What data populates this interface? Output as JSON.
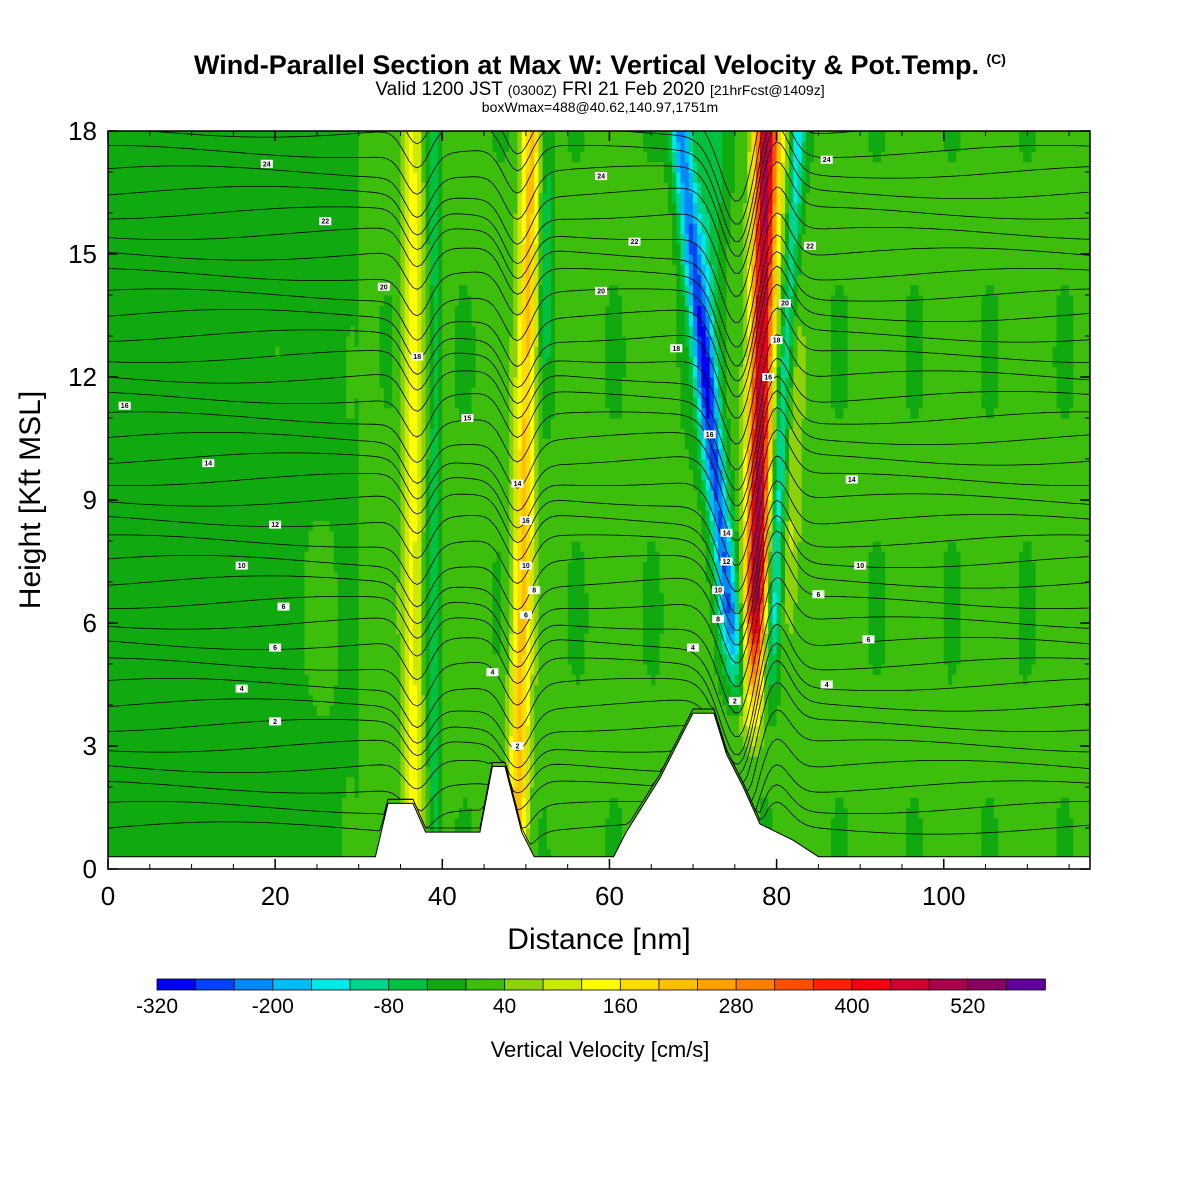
{
  "header": {
    "title": "Wind-Parallel Section at Max W: Vertical Velocity & Pot.Temp.",
    "title_mark": "(C)",
    "valid_prefix": "Valid 1200 JST",
    "valid_utc": "(0300Z)",
    "valid_date": "FRI 21 Feb 2020",
    "forecast": "[21hrFcst@1409z]",
    "box_info": "boxWmax=488@40.62,140.97,1751m"
  },
  "chart_data": {
    "type": "heatmap",
    "xlabel": "Distance [nm]",
    "ylabel": "Height [Kft MSL]",
    "xlim": [
      0,
      117.5
    ],
    "ylim": [
      0,
      18
    ],
    "xticks": [
      0,
      20,
      40,
      60,
      80,
      100
    ],
    "yticks": [
      0,
      3,
      6,
      9,
      12,
      15,
      18
    ],
    "colorbar": {
      "title": "Vertical Velocity [cm/s]",
      "levels": [
        -320,
        -280,
        -240,
        -200,
        -160,
        -120,
        -80,
        -40,
        0,
        40,
        80,
        120,
        160,
        200,
        240,
        280,
        320,
        360,
        400,
        440,
        480,
        520,
        560
      ],
      "labels": [
        -320,
        -200,
        -80,
        40,
        160,
        280,
        400,
        520
      ],
      "colors": [
        "#0000f0",
        "#0044f5",
        "#0088f5",
        "#00bbf5",
        "#00e8e8",
        "#00d48c",
        "#00c040",
        "#10aa10",
        "#3ebe0c",
        "#8cd10a",
        "#cce805",
        "#ffff00",
        "#ffdc00",
        "#ffbe00",
        "#ff9f00",
        "#ff7f00",
        "#ff5000",
        "#ff2200",
        "#ee0010",
        "#cc0030",
        "#a8004a",
        "#880060",
        "#60009c"
      ]
    },
    "updrafts": [
      {
        "x": 36.5,
        "w_cm_s": 120
      },
      {
        "x": 49.5,
        "w_cm_s": 200
      },
      {
        "x": 77.5,
        "w_cm_s": 480
      }
    ],
    "downdrafts": [
      {
        "x": 74.5,
        "w_cm_s": -240
      },
      {
        "x": 79.5,
        "w_cm_s": -200
      }
    ],
    "terrain_kft": [
      [
        0,
        0.3
      ],
      [
        32,
        0.3
      ],
      [
        33.5,
        1.6
      ],
      [
        36.5,
        1.6
      ],
      [
        38,
        0.9
      ],
      [
        44.5,
        0.9
      ],
      [
        46,
        2.5
      ],
      [
        47.5,
        2.5
      ],
      [
        49.5,
        0.9
      ],
      [
        51,
        0.3
      ],
      [
        60.5,
        0.3
      ],
      [
        62,
        0.9
      ],
      [
        66,
        2.2
      ],
      [
        70,
        3.8
      ],
      [
        72.5,
        3.8
      ],
      [
        74,
        2.8
      ],
      [
        76,
        2.0
      ],
      [
        78,
        1.1
      ],
      [
        82,
        0.7
      ],
      [
        85,
        0.3
      ],
      [
        117.5,
        0.3
      ]
    ],
    "theta_contour_labels": [
      "24",
      "22",
      "20",
      "18",
      "16",
      "15",
      "14",
      "12",
      "10",
      "8",
      "6",
      "4",
      "2"
    ]
  }
}
